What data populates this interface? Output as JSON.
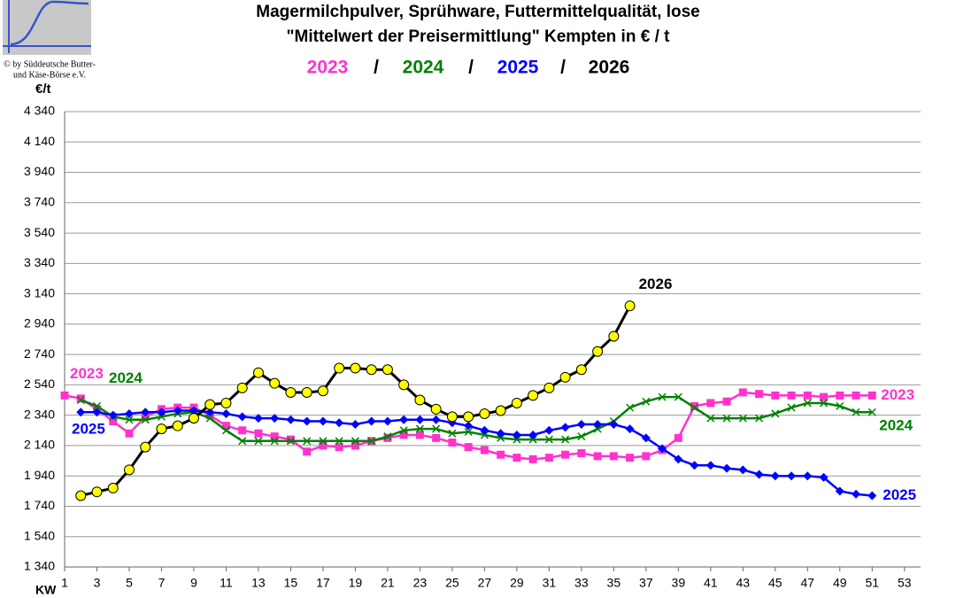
{
  "header": {
    "copyright": [
      "© by Süddeutsche Butter-",
      "und Käse-Börse e.V."
    ]
  },
  "chart_data": {
    "type": "line",
    "title": [
      "Magermilchpulver, Sprühware, Futtermittelqualität, lose",
      "\"Mittelwert der Preisermittlung\" Kempten in € / t"
    ],
    "legend_separator": "/",
    "y_label": "€/t",
    "x_label": "KW",
    "xlim": [
      1,
      54
    ],
    "xticks": [
      1,
      3,
      5,
      7,
      9,
      11,
      13,
      15,
      17,
      19,
      21,
      23,
      25,
      27,
      29,
      31,
      33,
      35,
      37,
      39,
      41,
      43,
      45,
      47,
      49,
      51,
      53
    ],
    "ylim": [
      1340,
      4340
    ],
    "yticks": [
      {
        "value": 1340,
        "label": "1 340"
      },
      {
        "value": 1540,
        "label": "1 540"
      },
      {
        "value": 1740,
        "label": "1 740"
      },
      {
        "value": 1940,
        "label": "1 940"
      },
      {
        "value": 2140,
        "label": "2 140"
      },
      {
        "value": 2340,
        "label": "2 340"
      },
      {
        "value": 2540,
        "label": "2 540"
      },
      {
        "value": 2740,
        "label": "2 740"
      },
      {
        "value": 2940,
        "label": "2 940"
      },
      {
        "value": 3140,
        "label": "3 140"
      },
      {
        "value": 3340,
        "label": "3 340"
      },
      {
        "value": 3540,
        "label": "3 540"
      },
      {
        "value": 3740,
        "label": "3 740"
      },
      {
        "value": 3940,
        "label": "3 940"
      },
      {
        "value": 4140,
        "label": "4 140"
      },
      {
        "value": 4340,
        "label": "4 340"
      }
    ],
    "grid": true,
    "series": [
      {
        "name": "2023",
        "color": "#ff33cc",
        "marker": "square",
        "start_label": true,
        "x": [
          1,
          2,
          3,
          4,
          5,
          6,
          7,
          8,
          9,
          10,
          11,
          12,
          13,
          14,
          15,
          16,
          17,
          18,
          19,
          20,
          21,
          22,
          23,
          24,
          25,
          26,
          27,
          28,
          29,
          30,
          31,
          32,
          33,
          34,
          35,
          36,
          37,
          38,
          39,
          40,
          41,
          42,
          43,
          44,
          45,
          46,
          47,
          48,
          49,
          50,
          51
        ],
        "values": [
          2470,
          2450,
          2380,
          2300,
          2220,
          2330,
          2380,
          2390,
          2390,
          2340,
          2270,
          2240,
          2220,
          2200,
          2180,
          2100,
          2140,
          2130,
          2140,
          2170,
          2190,
          2210,
          2210,
          2190,
          2160,
          2130,
          2110,
          2080,
          2060,
          2050,
          2060,
          2080,
          2090,
          2070,
          2070,
          2060,
          2070,
          2110,
          2190,
          2400,
          2420,
          2430,
          2490,
          2480,
          2470,
          2470,
          2470,
          2460,
          2470,
          2470,
          2470
        ]
      },
      {
        "name": "2024",
        "color": "#008000",
        "marker": "x",
        "start_label": true,
        "x": [
          2,
          3,
          4,
          5,
          6,
          7,
          8,
          9,
          10,
          11,
          12,
          13,
          14,
          15,
          16,
          17,
          18,
          19,
          20,
          21,
          22,
          23,
          24,
          25,
          26,
          27,
          28,
          29,
          30,
          31,
          32,
          33,
          34,
          35,
          36,
          37,
          38,
          39,
          40,
          41,
          42,
          43,
          44,
          45,
          46,
          47,
          48,
          49,
          50,
          51
        ],
        "values": [
          2440,
          2400,
          2330,
          2310,
          2310,
          2330,
          2350,
          2360,
          2320,
          2240,
          2170,
          2170,
          2170,
          2170,
          2170,
          2170,
          2170,
          2170,
          2170,
          2200,
          2240,
          2250,
          2250,
          2220,
          2230,
          2210,
          2190,
          2180,
          2180,
          2180,
          2180,
          2200,
          2250,
          2300,
          2390,
          2430,
          2460,
          2460,
          2390,
          2320,
          2320,
          2320,
          2320,
          2350,
          2390,
          2420,
          2420,
          2400,
          2360,
          2360
        ]
      },
      {
        "name": "2025",
        "color": "#0000ff",
        "marker": "diamond",
        "start_label": true,
        "x": [
          2,
          3,
          4,
          5,
          6,
          7,
          8,
          9,
          10,
          11,
          12,
          13,
          14,
          15,
          16,
          17,
          18,
          19,
          20,
          21,
          22,
          23,
          24,
          25,
          26,
          27,
          28,
          29,
          30,
          31,
          32,
          33,
          34,
          35,
          36,
          37,
          38,
          39,
          40,
          41,
          42,
          43,
          44,
          45,
          46,
          47,
          48,
          49,
          50,
          51
        ],
        "values": [
          2360,
          2360,
          2340,
          2350,
          2360,
          2360,
          2370,
          2370,
          2360,
          2350,
          2330,
          2320,
          2320,
          2310,
          2300,
          2300,
          2290,
          2280,
          2300,
          2300,
          2310,
          2310,
          2310,
          2290,
          2270,
          2240,
          2220,
          2210,
          2210,
          2240,
          2260,
          2280,
          2280,
          2280,
          2250,
          2190,
          2120,
          2050,
          2010,
          2010,
          1990,
          1980,
          1950,
          1940,
          1940,
          1940,
          1930,
          1840,
          1820,
          1810
        ]
      },
      {
        "name": "2026",
        "color": "#000000",
        "marker": "circle",
        "marker_fill": "#ffff00",
        "start_label": false,
        "x": [
          2,
          3,
          4,
          5,
          6,
          7,
          8,
          9,
          10,
          11,
          12,
          13,
          14,
          15,
          16,
          17,
          18,
          19,
          20,
          21,
          22,
          23,
          24,
          25,
          26,
          27,
          28,
          29,
          30,
          31,
          32,
          33,
          34,
          35,
          36
        ],
        "values": [
          1810,
          1835,
          1860,
          1980,
          2130,
          2250,
          2270,
          2320,
          2410,
          2420,
          2520,
          2620,
          2550,
          2490,
          2490,
          2500,
          2650,
          2650,
          2640,
          2640,
          2540,
          2440,
          2380,
          2330,
          2330,
          2350,
          2370,
          2420,
          2470,
          2520,
          2590,
          2640,
          2760,
          2860,
          3060
        ]
      }
    ]
  }
}
